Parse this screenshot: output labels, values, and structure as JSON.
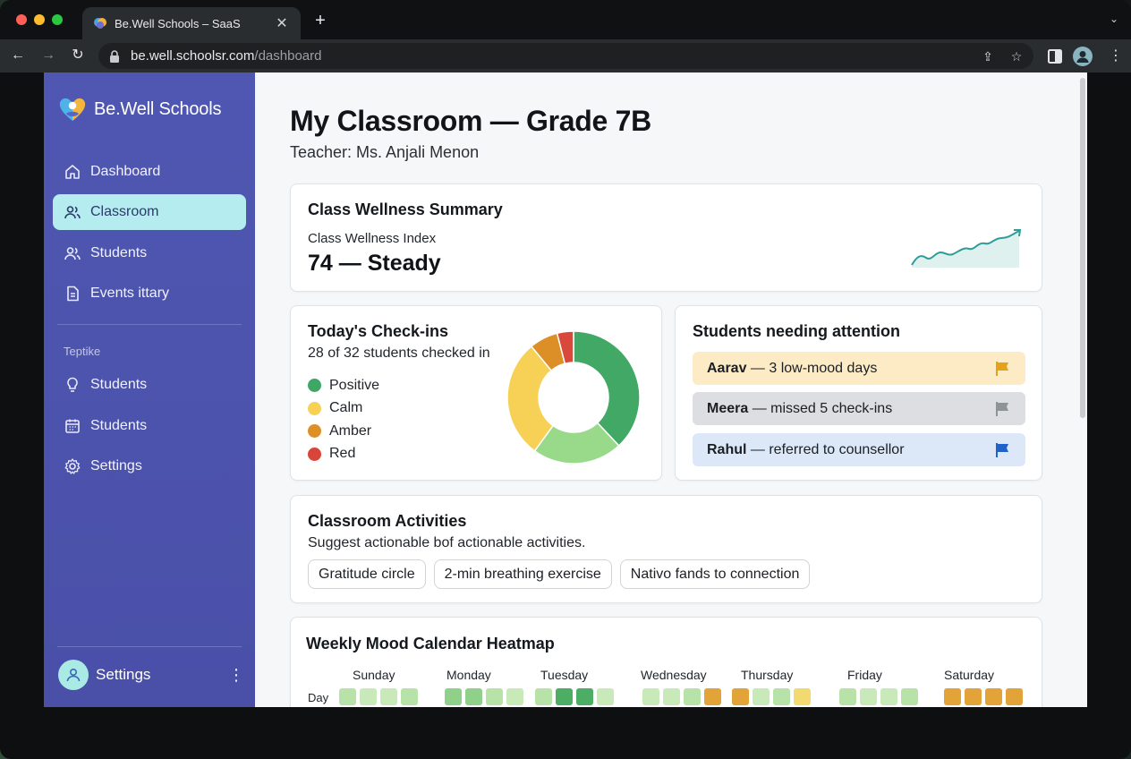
{
  "browser": {
    "tab_title": "Be.Well Schools – SaaS",
    "url_host": "be.well.schoolsr.com",
    "url_path": "/dashboard"
  },
  "sidebar": {
    "brand": "Be.Well Schools",
    "nav": [
      {
        "label": "Dashboard",
        "icon": "home-icon",
        "active": false
      },
      {
        "label": "Classroom",
        "icon": "users-icon",
        "active": true
      },
      {
        "label": "Students",
        "icon": "users-icon",
        "active": false
      },
      {
        "label": "Events ittary",
        "icon": "document-icon",
        "active": false
      }
    ],
    "section_title": "Teptike",
    "section_nav": [
      {
        "label": "Students",
        "icon": "lightbulb-icon"
      },
      {
        "label": "Students",
        "icon": "calendar-icon"
      },
      {
        "label": "Settings",
        "icon": "gear-icon"
      }
    ],
    "footer_label": "Settings"
  },
  "page": {
    "title": "My Classroom — Grade 7B",
    "subtitle": "Teacher: Ms. Anjali Menon"
  },
  "summary": {
    "title": "Class Wellness Summary",
    "index_label": "Class Wellness Index",
    "index_value": "74 — Steady"
  },
  "checkins": {
    "title": "Today's Check-ins",
    "subtitle": "28 of 32 students checked in",
    "legend": [
      {
        "label": "Positive",
        "color": "#3fa766"
      },
      {
        "label": "Calm",
        "color": "#f6d155"
      },
      {
        "label": "Amber",
        "color": "#de8f27"
      },
      {
        "label": "Red",
        "color": "#d9443b"
      }
    ]
  },
  "chart_data": {
    "type": "pie",
    "slices": [
      {
        "label": "Positive",
        "value": 38,
        "color": "#41a866"
      },
      {
        "label": "Positive (light)",
        "value": 22,
        "color": "#98d98a"
      },
      {
        "label": "Calm",
        "value": 29,
        "color": "#f6d155"
      },
      {
        "label": "Amber",
        "value": 7,
        "color": "#dd8f27"
      },
      {
        "label": "Red",
        "value": 4,
        "color": "#d8483b"
      }
    ]
  },
  "attention": {
    "title": "Students needing attention",
    "items": [
      {
        "name": "Aarav",
        "detail": " — 3 low-mood days",
        "bg": "#fcebc5",
        "flag_color": "#e3a21a"
      },
      {
        "name": "Meera",
        "detail": " — missed 5 check-ins",
        "bg": "#dcdee1",
        "flag_color": "#8e9398"
      },
      {
        "name": "Rahul",
        "detail": " — referred to counsellor",
        "bg": "#dce8f8",
        "flag_color": "#1f62c9"
      }
    ]
  },
  "activities": {
    "title": "Classroom Activities",
    "subtitle": "Suggest actionable bof actionable activities.",
    "chips": [
      "Gratitude circle",
      "2-min breathing exercise",
      "Nativo fands to connection"
    ]
  },
  "heatmap": {
    "title": "Weekly Mood Calendar Heatmap",
    "row_label": "Day",
    "days": [
      "Sunday",
      "Monday",
      "Tuesday",
      "Wednesday",
      "Thursday",
      "Friday",
      "Saturday"
    ],
    "cells": [
      [
        "#b7e3a8",
        "#c7eab8",
        "#c7eab8",
        "#b7e3a8"
      ],
      [
        "#8fd08a",
        "#8fd08a",
        "#b7e3a8",
        "#c7eab8"
      ],
      [
        "#b7e3a8",
        "#4cae64",
        "#4cae64",
        "#c7eab8"
      ],
      [
        "#c7eab8",
        "#c7eab8",
        "#b7e3a8",
        "#e2a338"
      ],
      [
        "#e2a338",
        "#c7eab8",
        "#b7e3a8",
        "#f2da70"
      ],
      [
        "#b7e3a8",
        "#c7eab8",
        "#c7eab8",
        "#b7e3a8"
      ],
      [
        "#e2a338",
        "#e2a338",
        "#e2a338",
        "#e2a338"
      ]
    ]
  }
}
